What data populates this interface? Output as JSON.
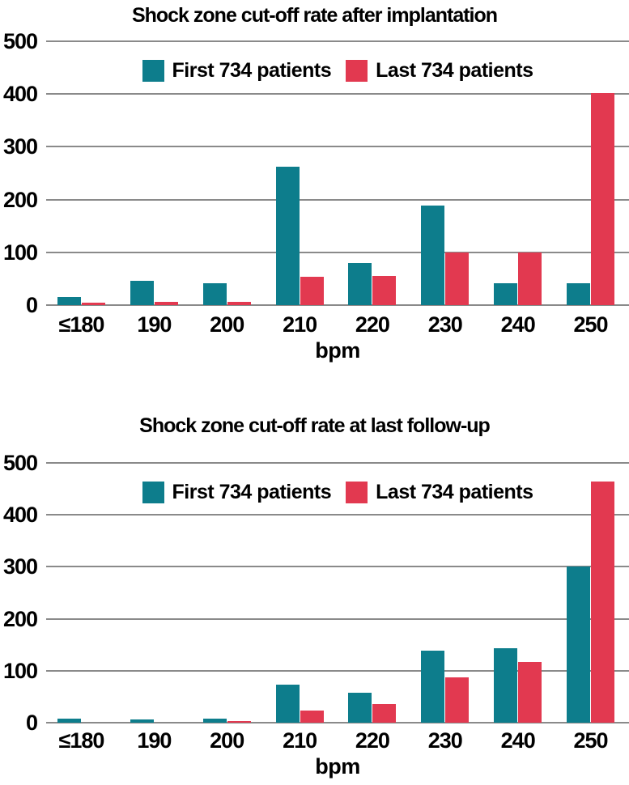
{
  "page": {
    "background": "#ffffff"
  },
  "colors": {
    "first_series": "#0d7d8c",
    "last_series": "#e23950",
    "gridline": "#8a8a8a",
    "text": "#000000"
  },
  "chart_data": [
    {
      "type": "bar",
      "title": "Shock zone cut-off rate after implantation",
      "xlabel": "bpm",
      "ylabel": "",
      "ylim": [
        0,
        500
      ],
      "yticks": [
        0,
        100,
        200,
        300,
        400,
        500
      ],
      "grid": true,
      "legend_position": "top-center-inside",
      "categories": [
        "≤180",
        "190",
        "200",
        "210",
        "220",
        "230",
        "240",
        "250"
      ],
      "series": [
        {
          "name": "First 734 patients",
          "color": "#0d7d8c",
          "values": [
            15,
            46,
            42,
            263,
            80,
            188,
            42,
            41
          ]
        },
        {
          "name": "Last 734 patients",
          "color": "#e23950",
          "values": [
            4,
            6,
            6,
            54,
            56,
            100,
            100,
            402
          ]
        }
      ]
    },
    {
      "type": "bar",
      "title": "Shock zone cut-off rate at last follow-up",
      "xlabel": "bpm",
      "ylabel": "",
      "ylim": [
        0,
        500
      ],
      "yticks": [
        0,
        100,
        200,
        300,
        400,
        500
      ],
      "grid": true,
      "legend_position": "top-center-inside",
      "categories": [
        "≤180",
        "190",
        "200",
        "210",
        "220",
        "230",
        "240",
        "250"
      ],
      "series": [
        {
          "name": "First 734 patients",
          "color": "#0d7d8c",
          "values": [
            8,
            6,
            8,
            73,
            57,
            139,
            144,
            300
          ]
        },
        {
          "name": "Last 734 patients",
          "color": "#e23950",
          "values": [
            0,
            0,
            3,
            23,
            36,
            88,
            117,
            464
          ]
        }
      ]
    }
  ]
}
